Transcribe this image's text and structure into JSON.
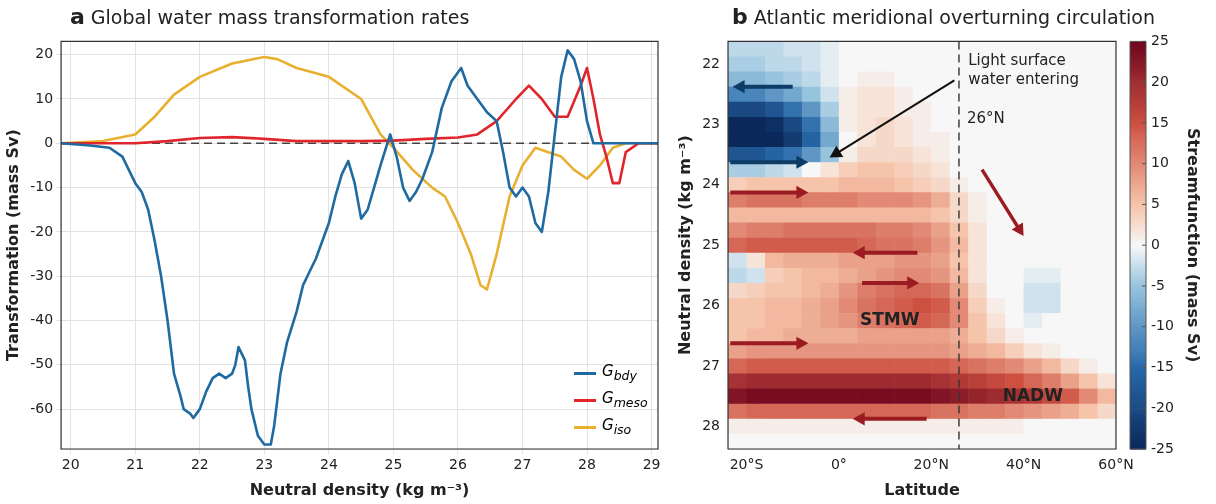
{
  "chart_data": [
    {
      "type": "line",
      "title": "a Global water mass transformation rates",
      "xlabel": "Neutral density (kg m⁻³)",
      "ylabel": "Transformation (mass Sv)",
      "xlim": [
        19.85,
        29.1
      ],
      "xticks": [
        20,
        21,
        22,
        23,
        24,
        25,
        26,
        27,
        28,
        29
      ],
      "ylim": [
        -69,
        23
      ],
      "yticks": [
        -60,
        -50,
        -40,
        -30,
        -20,
        -10,
        0,
        10,
        20
      ],
      "grid": true,
      "legend": "bottom right",
      "marker": "none",
      "ref_lines": [
        {
          "axis": "y",
          "value": 0,
          "color": "#444444",
          "line_style": "dashed"
        }
      ],
      "series": [
        {
          "name": "G$_{bdy}$",
          "color": "#1f6aa0",
          "x": [
            19.85,
            20.3,
            20.6,
            20.8,
            21.0,
            21.1,
            21.2,
            21.3,
            21.4,
            21.5,
            21.6,
            21.7,
            21.75,
            21.85,
            21.9,
            22.0,
            22.1,
            22.2,
            22.3,
            22.4,
            22.5,
            22.55,
            22.6,
            22.7,
            22.75,
            22.8,
            22.9,
            23.0,
            23.1,
            23.15,
            23.25,
            23.35,
            23.5,
            23.6,
            23.7,
            23.8,
            23.9,
            24.0,
            24.1,
            24.2,
            24.3,
            24.4,
            24.5,
            24.6,
            24.7,
            24.8,
            24.95,
            25.05,
            25.15,
            25.25,
            25.35,
            25.45,
            25.6,
            25.75,
            25.9,
            26.05,
            26.15,
            26.3,
            26.45,
            26.6,
            26.7,
            26.8,
            26.9,
            27.0,
            27.1,
            27.2,
            27.3,
            27.4,
            27.5,
            27.6,
            27.7,
            27.8,
            27.9,
            28.0,
            28.1,
            28.3,
            29.1
          ],
          "values": [
            0,
            -0.5,
            -1,
            -3,
            -9,
            -11,
            -15,
            -22,
            -30,
            -40,
            -52,
            -57,
            -60,
            -61,
            -62,
            -60,
            -56,
            -53,
            -52,
            -53,
            -52,
            -50,
            -46,
            -49,
            -55,
            -60,
            -66,
            -68,
            -68,
            -64,
            -52,
            -45,
            -38,
            -32,
            -29,
            -26,
            -22,
            -18,
            -12,
            -7,
            -4,
            -9,
            -17,
            -15,
            -10,
            -5,
            2,
            -3,
            -10,
            -13,
            -11,
            -8,
            -2,
            8,
            14,
            17,
            13,
            10,
            7,
            5,
            -2,
            -10,
            -12,
            -10,
            -12,
            -18,
            -20,
            -11,
            2,
            15,
            21,
            19,
            14,
            5,
            0,
            0,
            0
          ]
        },
        {
          "name": "G$_{meso}$",
          "color": "#e0262c",
          "x": [
            19.85,
            21.0,
            21.5,
            22.0,
            22.5,
            23.0,
            23.5,
            24.5,
            25.0,
            25.5,
            26.0,
            26.3,
            26.6,
            26.9,
            27.1,
            27.3,
            27.5,
            27.7,
            27.9,
            28.0,
            28.1,
            28.2,
            28.3,
            28.4,
            28.5,
            28.6,
            28.8,
            29.1
          ],
          "values": [
            0,
            0,
            0.5,
            1.2,
            1.4,
            1,
            0.5,
            0.5,
            0.6,
            1,
            1.3,
            2,
            5,
            10,
            13,
            10,
            6,
            6,
            13,
            17,
            10,
            2,
            -3,
            -9,
            -9,
            -2,
            0,
            0
          ]
        },
        {
          "name": "G$_{iso}$",
          "color": "#e9b030",
          "x": [
            19.85,
            20.5,
            21.0,
            21.3,
            21.6,
            22.0,
            22.5,
            23.0,
            23.2,
            23.5,
            24.0,
            24.5,
            24.8,
            25.0,
            25.3,
            25.6,
            25.8,
            26.0,
            26.2,
            26.35,
            26.45,
            26.6,
            26.8,
            27.0,
            27.2,
            27.4,
            27.6,
            27.8,
            28.0,
            28.2,
            28.4,
            28.6,
            29.1
          ],
          "values": [
            0,
            0.5,
            2,
            6,
            11,
            15,
            18,
            19.5,
            19,
            17,
            15,
            10,
            2,
            -1,
            -6,
            -10,
            -12,
            -18,
            -25,
            -32,
            -33,
            -25,
            -12,
            -5,
            -1,
            -2,
            -3,
            -6,
            -8,
            -5,
            -1,
            0,
            0
          ]
        }
      ]
    },
    {
      "type": "heatmap",
      "title": "b Atlantic meridional overturning circulation",
      "xlabel": "Latitude",
      "ylabel": "Neutral density (kg m⁻³)",
      "clabel": "Streamfunction (mass Sv)",
      "x": [
        -22,
        -18,
        -14,
        -10,
        -6,
        -2,
        2,
        6,
        10,
        14,
        18,
        22,
        26,
        30,
        34,
        38,
        42,
        46,
        50,
        54,
        58
      ],
      "xlim": [
        -24,
        60
      ],
      "xticks": [
        {
          "value": -20,
          "label": "20°S"
        },
        {
          "value": 0,
          "label": "0°"
        },
        {
          "value": 20,
          "label": "20°N"
        },
        {
          "value": 40,
          "label": "40°N"
        },
        {
          "value": 60,
          "label": "60°N"
        }
      ],
      "y_categories": [
        null,
        "22",
        null,
        null,
        null,
        "23",
        null,
        null,
        null,
        "24",
        null,
        null,
        null,
        "25",
        null,
        null,
        null,
        "26",
        null,
        null,
        null,
        "27",
        null,
        null,
        null,
        "28",
        null
      ],
      "clim": [
        -25,
        25
      ],
      "cticks": [
        -25,
        -20,
        -15,
        -10,
        -5,
        0,
        5,
        10,
        15,
        20,
        25
      ],
      "ref_lines": [
        {
          "axis": "x",
          "value": 26,
          "label": "26°N",
          "color": "#333333",
          "line_style": "dashed"
        }
      ],
      "annotations": [
        "Light surface water entering",
        "STMW",
        "NADW"
      ],
      "cells": [
        [
          -3,
          -3,
          -3,
          -2,
          -2,
          -1,
          0,
          0,
          0,
          0,
          0,
          0,
          0,
          0,
          0,
          0,
          0,
          0,
          0,
          0,
          0
        ],
        [
          -4,
          -4,
          -3,
          -3,
          -2,
          -1,
          0,
          0,
          0,
          0,
          0,
          0,
          0,
          0,
          0,
          0,
          0,
          0,
          0,
          0,
          0
        ],
        [
          -6,
          -6,
          -5,
          -4,
          -3,
          -1,
          0,
          1,
          1,
          0,
          0,
          0,
          0,
          0,
          0,
          0,
          0,
          0,
          0,
          0,
          0
        ],
        [
          -12,
          -12,
          -10,
          -8,
          -5,
          -2,
          1,
          2,
          2,
          1,
          0,
          0,
          0,
          0,
          0,
          0,
          0,
          0,
          0,
          0,
          0
        ],
        [
          -20,
          -20,
          -18,
          -14,
          -10,
          -4,
          1,
          2,
          2,
          1,
          1,
          0,
          0,
          0,
          0,
          0,
          0,
          0,
          0,
          0,
          0
        ],
        [
          -25,
          -25,
          -24,
          -20,
          -14,
          -6,
          1,
          2,
          3,
          2,
          1,
          0,
          0,
          0,
          0,
          0,
          0,
          0,
          0,
          0,
          0
        ],
        [
          -25,
          -25,
          -25,
          -22,
          -16,
          -8,
          0,
          2,
          3,
          2,
          1,
          1,
          0,
          0,
          0,
          0,
          0,
          0,
          0,
          0,
          0
        ],
        [
          -18,
          -18,
          -16,
          -14,
          -10,
          -5,
          1,
          3,
          3,
          3,
          2,
          1,
          0,
          0,
          0,
          0,
          0,
          0,
          0,
          0,
          0
        ],
        [
          -4,
          -4,
          -3,
          -2,
          0,
          2,
          4,
          5,
          5,
          4,
          3,
          2,
          0,
          0,
          0,
          0,
          0,
          0,
          0,
          0,
          0
        ],
        [
          4,
          5,
          5,
          5,
          5,
          5,
          6,
          6,
          6,
          5,
          4,
          3,
          1,
          0,
          0,
          0,
          0,
          0,
          0,
          0,
          0
        ],
        [
          11,
          12,
          12,
          12,
          11,
          11,
          11,
          10,
          10,
          10,
          9,
          7,
          3,
          1,
          0,
          0,
          0,
          0,
          0,
          0,
          0
        ],
        [
          6,
          6,
          6,
          6,
          6,
          6,
          6,
          6,
          6,
          6,
          6,
          5,
          3,
          1,
          0,
          0,
          0,
          0,
          0,
          0,
          0
        ],
        [
          10,
          11,
          11,
          12,
          12,
          12,
          12,
          12,
          11,
          11,
          10,
          8,
          5,
          2,
          0,
          0,
          0,
          0,
          0,
          0,
          0
        ],
        [
          13,
          14,
          14,
          14,
          14,
          14,
          14,
          13,
          12,
          12,
          11,
          9,
          6,
          2,
          0,
          0,
          0,
          0,
          0,
          0,
          0
        ],
        [
          -2,
          2,
          6,
          7,
          7,
          7,
          8,
          8,
          8,
          9,
          9,
          8,
          5,
          2,
          0,
          0,
          0,
          0,
          0,
          0,
          0
        ],
        [
          -3,
          -2,
          4,
          5,
          6,
          6,
          7,
          8,
          9,
          10,
          10,
          9,
          6,
          2,
          0,
          0,
          -1,
          -1,
          0,
          0,
          0
        ],
        [
          3,
          4,
          5,
          5,
          6,
          7,
          9,
          11,
          12,
          13,
          13,
          12,
          8,
          3,
          0,
          0,
          -2,
          -2,
          0,
          0,
          0
        ],
        [
          5,
          5,
          6,
          6,
          7,
          8,
          10,
          12,
          13,
          14,
          15,
          14,
          10,
          4,
          1,
          0,
          -2,
          -2,
          0,
          0,
          0
        ],
        [
          5,
          5,
          6,
          6,
          7,
          8,
          9,
          11,
          12,
          13,
          14,
          13,
          10,
          5,
          2,
          0,
          -1,
          0,
          0,
          0,
          0
        ],
        [
          5,
          6,
          6,
          7,
          7,
          7,
          7,
          8,
          8,
          8,
          8,
          8,
          7,
          5,
          3,
          1,
          0,
          0,
          0,
          0,
          0
        ],
        [
          8,
          9,
          9,
          9,
          9,
          9,
          9,
          9,
          9,
          9,
          9,
          9,
          8,
          7,
          6,
          4,
          2,
          1,
          0,
          0,
          0
        ],
        [
          13,
          14,
          14,
          14,
          14,
          14,
          14,
          14,
          14,
          14,
          14,
          14,
          13,
          12,
          11,
          10,
          8,
          6,
          3,
          1,
          0
        ],
        [
          19,
          20,
          20,
          20,
          20,
          20,
          20,
          20,
          20,
          20,
          20,
          19,
          18,
          17,
          16,
          15,
          13,
          11,
          8,
          5,
          2
        ],
        [
          23,
          24,
          24,
          24,
          24,
          24,
          24,
          24,
          24,
          24,
          24,
          23,
          22,
          21,
          20,
          19,
          18,
          16,
          14,
          10,
          6
        ],
        [
          12,
          13,
          13,
          13,
          13,
          13,
          13,
          13,
          13,
          13,
          13,
          12,
          12,
          11,
          11,
          10,
          9,
          8,
          7,
          5,
          3
        ],
        [
          1,
          1,
          1,
          1,
          1,
          1,
          1,
          1,
          1,
          1,
          1,
          1,
          1,
          1,
          1,
          1,
          0,
          0,
          0,
          0,
          0
        ],
        [
          0,
          0,
          0,
          0,
          0,
          0,
          0,
          0,
          0,
          0,
          0,
          0,
          0,
          0,
          0,
          0,
          0,
          0,
          0,
          0,
          0
        ]
      ]
    }
  ]
}
